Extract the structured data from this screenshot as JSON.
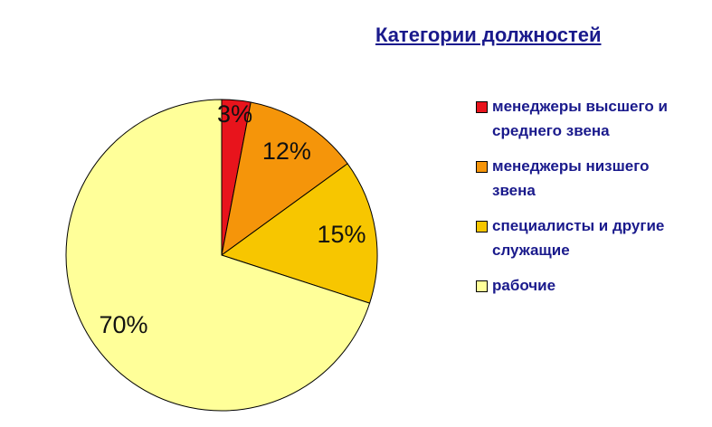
{
  "chart_data": {
    "type": "pie",
    "title": "Категории должностей",
    "categories": [
      "менеджеры высшего и среднего звена",
      "менеджеры низшего звена",
      "специалисты и другие служащие",
      "рабочие"
    ],
    "values": [
      3,
      12,
      15,
      70
    ],
    "value_labels": [
      "3%",
      "12%",
      "15%",
      "70%"
    ],
    "colors": [
      "#e8141c",
      "#f5950a",
      "#f7c600",
      "#ffff99"
    ],
    "legend": "right"
  }
}
